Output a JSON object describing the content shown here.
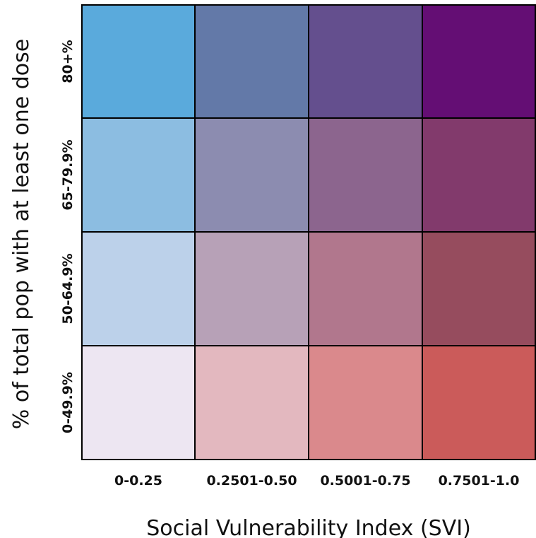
{
  "chart_data": {
    "type": "heatmap",
    "xlabel": "Social Vulnerability Index (SVI)",
    "ylabel": "% of total pop with at least one dose",
    "x_categories": [
      "0-0.25",
      "0.2501-0.50",
      "0.5001-0.75",
      "0.7501-1.0"
    ],
    "y_categories": [
      "80+%",
      "65-79.9%",
      "50-64.9%",
      "0-49.9%"
    ],
    "cell_colors": [
      [
        "#5aaadc",
        "#6379a8",
        "#644f8e",
        "#640e74"
      ],
      [
        "#8cbde1",
        "#8c8cb0",
        "#8c658e",
        "#823a6c"
      ],
      [
        "#bcd1ea",
        "#b7a1b7",
        "#b1778d",
        "#964c5e"
      ],
      [
        "#ede6f2",
        "#e3b8bf",
        "#da898c",
        "#cb5b5a"
      ]
    ],
    "grid_color": "#000000"
  }
}
